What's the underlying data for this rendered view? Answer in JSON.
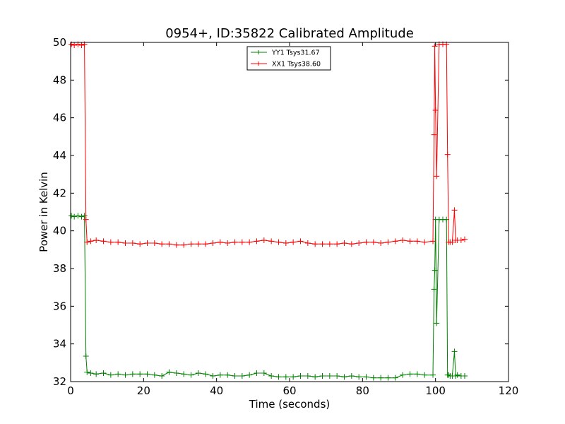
{
  "chart_data": {
    "type": "line",
    "title": "0954+, ID:35822 Calibrated Amplitude",
    "xlabel": "Time (seconds)",
    "ylabel": "Power in Kelvin",
    "xlim": [
      0,
      120
    ],
    "ylim": [
      32,
      50
    ],
    "xticks": [
      0,
      20,
      40,
      60,
      80,
      100,
      120
    ],
    "yticks": [
      32,
      34,
      36,
      38,
      40,
      42,
      44,
      46,
      48,
      50
    ],
    "grid": false,
    "legend_position": "top-center",
    "series": [
      {
        "name": "YY1 Tsys31.67",
        "color": "#008000",
        "marker": "+",
        "x": [
          0.2,
          1.0,
          2.0,
          3.0,
          3.8,
          4.2,
          4.5,
          5.5,
          7.0,
          9.0,
          11.0,
          13.0,
          15.0,
          17.0,
          19.0,
          21.0,
          23.0,
          25.0,
          27.0,
          29.0,
          31.0,
          33.0,
          35.0,
          37.0,
          39.0,
          41.0,
          43.0,
          45.0,
          47.0,
          49.0,
          51.0,
          53.0,
          55.0,
          57.0,
          59.0,
          61.0,
          63.0,
          65.0,
          67.0,
          69.0,
          71.0,
          73.0,
          75.0,
          77.0,
          79.0,
          81.0,
          83.0,
          85.0,
          87.0,
          89.0,
          91.0,
          93.0,
          95.0,
          97.0,
          99.3,
          99.6,
          99.8,
          100.0,
          100.3,
          101.0,
          102.0,
          103.0,
          103.3,
          103.6,
          104.0,
          104.6,
          105.2,
          105.5,
          106.0,
          107.0,
          108.0
        ],
        "values": [
          40.8,
          40.75,
          40.8,
          40.75,
          40.8,
          33.35,
          32.5,
          32.45,
          32.4,
          32.45,
          32.35,
          32.4,
          32.35,
          32.4,
          32.4,
          32.4,
          32.35,
          32.3,
          32.5,
          32.45,
          32.4,
          32.35,
          32.45,
          32.4,
          32.3,
          32.35,
          32.35,
          32.3,
          32.3,
          32.35,
          32.45,
          32.45,
          32.3,
          32.25,
          32.25,
          32.25,
          32.3,
          32.3,
          32.25,
          32.3,
          32.3,
          32.3,
          32.25,
          32.3,
          32.25,
          32.25,
          32.2,
          32.2,
          32.2,
          32.2,
          32.35,
          32.4,
          32.4,
          32.35,
          32.35,
          36.9,
          37.9,
          40.6,
          35.1,
          40.6,
          40.6,
          40.6,
          32.35,
          32.35,
          32.3,
          32.3,
          33.6,
          32.3,
          32.35,
          32.3,
          32.3
        ]
      },
      {
        "name": "XX1 Tsys38.60",
        "color": "#ff0000",
        "marker": "+",
        "x": [
          0.2,
          1.0,
          2.0,
          3.0,
          3.8,
          4.2,
          4.5,
          5.5,
          7.0,
          9.0,
          11.0,
          13.0,
          15.0,
          17.0,
          19.0,
          21.0,
          23.0,
          25.0,
          27.0,
          29.0,
          31.0,
          33.0,
          35.0,
          37.0,
          39.0,
          41.0,
          43.0,
          45.0,
          47.0,
          49.0,
          51.0,
          53.0,
          55.0,
          57.0,
          59.0,
          61.0,
          63.0,
          65.0,
          67.0,
          69.0,
          71.0,
          73.0,
          75.0,
          77.0,
          79.0,
          81.0,
          83.0,
          85.0,
          87.0,
          89.0,
          91.0,
          93.0,
          95.0,
          97.0,
          99.3,
          99.6,
          99.8,
          100.0,
          100.3,
          101.0,
          102.0,
          103.0,
          103.3,
          103.6,
          104.0,
          104.6,
          105.2,
          105.5,
          106.0,
          107.0,
          108.0
        ],
        "values": [
          49.9,
          49.85,
          49.9,
          49.85,
          49.9,
          40.6,
          39.4,
          39.45,
          39.5,
          39.45,
          39.4,
          39.4,
          39.35,
          39.35,
          39.3,
          39.35,
          39.35,
          39.3,
          39.3,
          39.25,
          39.25,
          39.3,
          39.3,
          39.3,
          39.35,
          39.4,
          39.35,
          39.4,
          39.4,
          39.4,
          39.45,
          39.5,
          39.45,
          39.4,
          39.35,
          39.4,
          39.45,
          39.35,
          39.3,
          39.3,
          39.3,
          39.3,
          39.35,
          39.3,
          39.35,
          39.4,
          39.4,
          39.35,
          39.4,
          39.45,
          39.5,
          39.45,
          39.45,
          39.4,
          39.45,
          45.1,
          49.8,
          46.4,
          42.9,
          49.9,
          49.9,
          49.9,
          44.05,
          39.4,
          39.4,
          39.4,
          41.1,
          39.5,
          39.5,
          39.5,
          39.55
        ]
      }
    ]
  }
}
